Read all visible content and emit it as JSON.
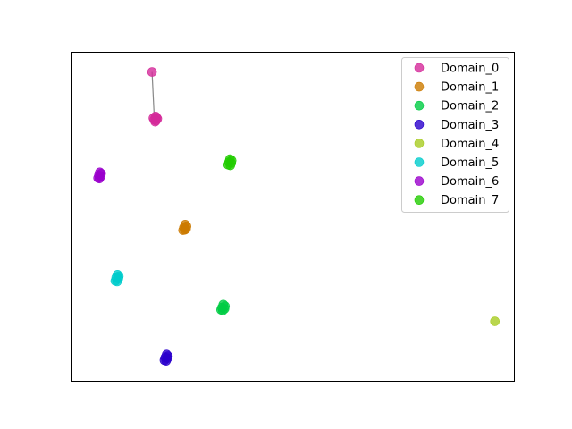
{
  "chart_data": {
    "type": "scatter",
    "title": "",
    "xlabel": "",
    "ylabel": "",
    "axes_ticks_visible": false,
    "grid": false,
    "legend_position": "top-right",
    "xlim": [
      0,
      100
    ],
    "ylim": [
      0,
      100
    ],
    "series": [
      {
        "name": "Domain_0",
        "color": "#d42b9a",
        "points": [
          [
            18.6,
            79.5
          ],
          [
            18.9,
            80.5
          ],
          [
            19.3,
            79.8
          ],
          [
            18.8,
            78.9
          ],
          [
            19.1,
            80.2
          ],
          [
            18.4,
            80.0
          ],
          [
            19.0,
            79.2
          ],
          [
            18.1,
            94.0
          ]
        ]
      },
      {
        "name": "Domain_1",
        "color": "#cc7a00",
        "points": [
          [
            25.3,
            46.7
          ],
          [
            25.6,
            47.6
          ],
          [
            25.8,
            46.3
          ],
          [
            25.1,
            45.9
          ],
          [
            25.5,
            46.0
          ],
          [
            25.9,
            47.1
          ]
        ]
      },
      {
        "name": "Domain_2",
        "color": "#00cc44",
        "points": [
          [
            33.9,
            22.4
          ],
          [
            34.2,
            23.3
          ],
          [
            34.5,
            22.0
          ],
          [
            33.7,
            21.7
          ],
          [
            34.1,
            21.5
          ],
          [
            34.6,
            22.8
          ]
        ]
      },
      {
        "name": "Domain_3",
        "color": "#2a00cc",
        "points": [
          [
            21.1,
            7.2
          ],
          [
            21.4,
            8.1
          ],
          [
            21.6,
            7.0
          ],
          [
            20.9,
            6.4
          ],
          [
            21.3,
            6.2
          ],
          [
            21.7,
            7.6
          ]
        ]
      },
      {
        "name": "Domain_4",
        "color": "#a8cc22",
        "points": [
          [
            95.6,
            18.2
          ]
        ]
      },
      {
        "name": "Domain_5",
        "color": "#00cccc",
        "points": [
          [
            10.0,
            31.5
          ],
          [
            10.3,
            32.4
          ],
          [
            10.5,
            31.2
          ],
          [
            9.8,
            30.5
          ],
          [
            10.2,
            30.3
          ],
          [
            10.6,
            31.9
          ]
        ]
      },
      {
        "name": "Domain_6",
        "color": "#9a00cc",
        "points": [
          [
            6.1,
            62.6
          ],
          [
            6.3,
            63.5
          ],
          [
            6.5,
            62.3
          ],
          [
            5.9,
            61.8
          ],
          [
            6.2,
            61.6
          ],
          [
            6.6,
            63.1
          ]
        ]
      },
      {
        "name": "Domain_7",
        "color": "#22cc00",
        "points": [
          [
            35.5,
            66.6
          ],
          [
            35.7,
            67.5
          ],
          [
            36.0,
            66.3
          ],
          [
            35.3,
            65.8
          ],
          [
            35.8,
            65.6
          ],
          [
            36.1,
            67.1
          ]
        ]
      }
    ],
    "annotations": [
      {
        "type": "line",
        "color": "#888888",
        "from": [
          18.1,
          94.0
        ],
        "to": [
          18.6,
          80.2
        ]
      }
    ]
  }
}
